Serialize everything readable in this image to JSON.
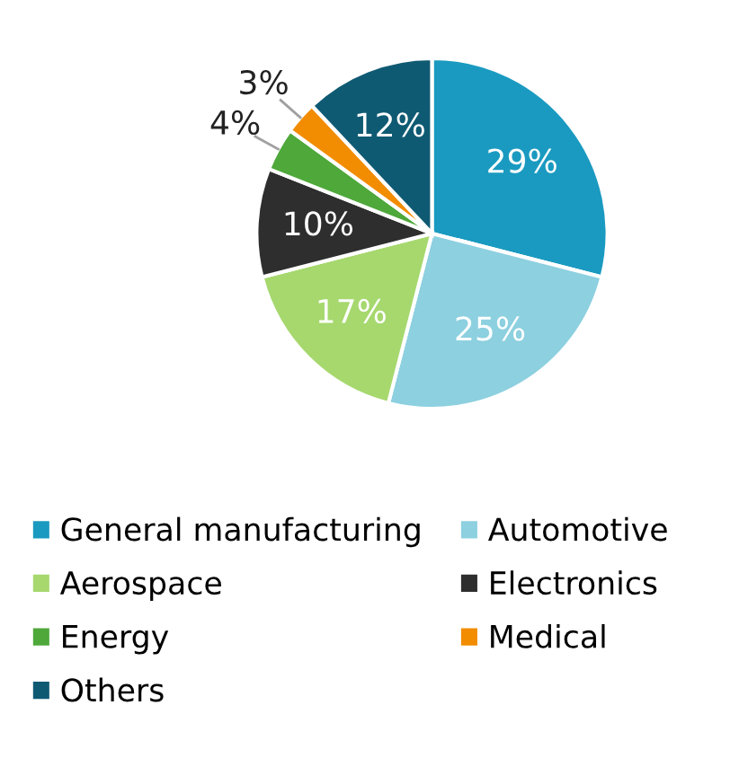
{
  "chart_data": {
    "type": "pie",
    "categories": [
      "General manufacturing",
      "Automotive",
      "Aerospace",
      "Electronics",
      "Energy",
      "Medical",
      "Others"
    ],
    "values": [
      29,
      25,
      17,
      10,
      4,
      3,
      12
    ],
    "colors": [
      "#1a9ac0",
      "#8dd0e0",
      "#a6d86e",
      "#2e2e2e",
      "#4ea83a",
      "#f28c00",
      "#0f5a73"
    ],
    "value_labels": [
      "29%",
      "25%",
      "17%",
      "10%",
      "4%",
      "3%",
      "12%"
    ],
    "legend": "bottom"
  }
}
